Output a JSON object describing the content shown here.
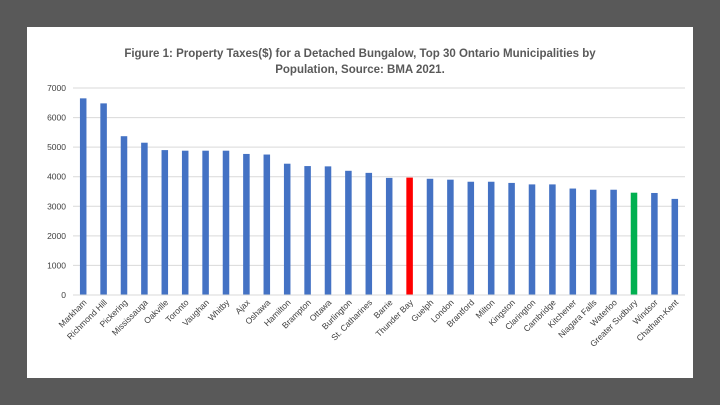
{
  "chart_data": {
    "type": "bar",
    "title_lines": [
      "Figure 1: Property Taxes($) for a Detached Bungalow, Top 30 Ontario Municipalities by",
      "Population, Source: BMA 2021."
    ],
    "xlabel": "",
    "ylabel": "",
    "ylim": [
      0,
      7000
    ],
    "yticks": [
      "0",
      "1000",
      "2000",
      "3000",
      "4000",
      "5000",
      "6000",
      "7000"
    ],
    "grid": true,
    "legend": "none",
    "default_color": "#4472C4",
    "categories": [
      "Markham",
      "Richmond Hill",
      "Pickering",
      "Mississauga",
      "Oakville",
      "Toronto",
      "Vaughan",
      "Whitby",
      "Ajax",
      "Oshawa",
      "Hamilton",
      "Brampton",
      "Ottawa",
      "Burlington",
      "St. Catharines",
      "Barrie",
      "Thunder Bay",
      "Guelph",
      "London",
      "Brantford",
      "Milton",
      "Kingston",
      "Clarington",
      "Cambridge",
      "Kitchener",
      "Niagara Falls",
      "Waterloo",
      "Greater Sudbury",
      "Windsor",
      "Chatham-Kent"
    ],
    "values": [
      6650,
      6480,
      5370,
      5150,
      4900,
      4880,
      4880,
      4880,
      4770,
      4750,
      4440,
      4360,
      4350,
      4200,
      4130,
      3960,
      3970,
      3930,
      3900,
      3830,
      3830,
      3790,
      3740,
      3740,
      3600,
      3560,
      3560,
      3460,
      3450,
      3250
    ],
    "bar_colors": [
      "#4472C4",
      "#4472C4",
      "#4472C4",
      "#4472C4",
      "#4472C4",
      "#4472C4",
      "#4472C4",
      "#4472C4",
      "#4472C4",
      "#4472C4",
      "#4472C4",
      "#4472C4",
      "#4472C4",
      "#4472C4",
      "#4472C4",
      "#4472C4",
      "#FF0000",
      "#4472C4",
      "#4472C4",
      "#4472C4",
      "#4472C4",
      "#4472C4",
      "#4472C4",
      "#4472C4",
      "#4472C4",
      "#4472C4",
      "#4472C4",
      "#00B050",
      "#4472C4",
      "#4472C4"
    ]
  }
}
